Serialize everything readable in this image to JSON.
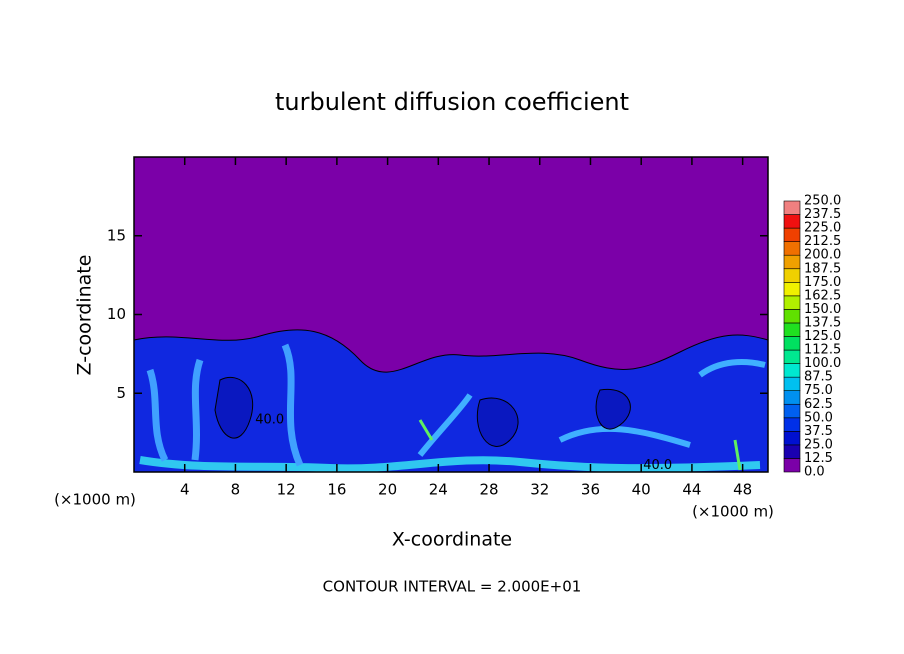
{
  "chart_data": {
    "type": "contour",
    "title": "turbulent diffusion coefficient",
    "xlabel": "X-coordinate",
    "ylabel": "Z-coordinate",
    "xunit": "(×1000 m)",
    "yunit": "(×1000 m)",
    "note": "CONTOUR INTERVAL = 2.000E+01",
    "xlim": [
      0,
      50
    ],
    "xticks": [
      4,
      8,
      12,
      16,
      20,
      24,
      28,
      32,
      36,
      40,
      44,
      48
    ],
    "ylim": [
      0,
      20
    ],
    "yticks": [
      5,
      10,
      15
    ],
    "contour_labels": [
      {
        "value": 40,
        "label": "40.0",
        "x": 10.7,
        "y": 3.3
      },
      {
        "value": 40,
        "label": "40.0",
        "x": 41.3,
        "y": 0.4
      }
    ],
    "colorbar": {
      "levels": [
        {
          "value": 0,
          "label": "0.0"
        },
        {
          "value": 12.5,
          "label": "12.5"
        },
        {
          "value": 25,
          "label": "25.0"
        },
        {
          "value": 37.5,
          "label": "37.5"
        },
        {
          "value": 50,
          "label": "50.0"
        },
        {
          "value": 62.5,
          "label": "62.5"
        },
        {
          "value": 75,
          "label": "75.0"
        },
        {
          "value": 87.5,
          "label": "87.5"
        },
        {
          "value": 100,
          "label": "100.0"
        },
        {
          "value": 112.5,
          "label": "112.5"
        },
        {
          "value": 125,
          "label": "125.0"
        },
        {
          "value": 137.5,
          "label": "137.5"
        },
        {
          "value": 150,
          "label": "150.0"
        },
        {
          "value": 162.5,
          "label": "162.5"
        },
        {
          "value": 175,
          "label": "175.0"
        },
        {
          "value": 187.5,
          "label": "187.5"
        },
        {
          "value": 200,
          "label": "200.0"
        },
        {
          "value": 212.5,
          "label": "212.5"
        },
        {
          "value": 225,
          "label": "225.0"
        },
        {
          "value": 237.5,
          "label": "237.5"
        },
        {
          "value": 250,
          "label": "250.0"
        }
      ],
      "colors": [
        "#7b00a8",
        "#1a00b0",
        "#0010d0",
        "#0030e8",
        "#0060f0",
        "#0090f0",
        "#00c0f0",
        "#00e8d0",
        "#00e890",
        "#00e060",
        "#20e020",
        "#60e000",
        "#b0f000",
        "#f0f000",
        "#f0d000",
        "#f0a000",
        "#f07000",
        "#f04000",
        "#f01010",
        "#f08080"
      ]
    }
  }
}
